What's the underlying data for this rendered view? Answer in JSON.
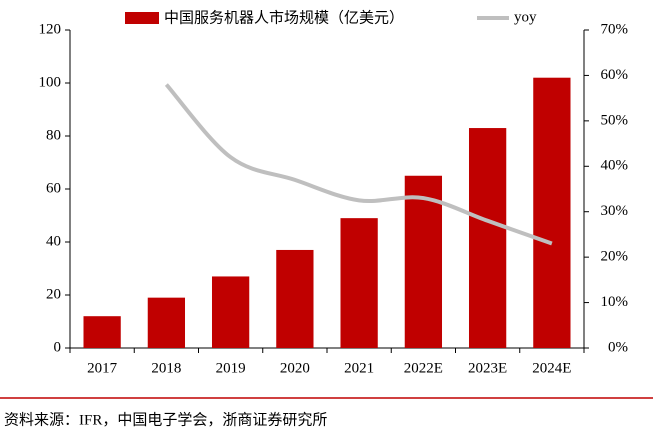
{
  "chart_data": {
    "type": "bar_line",
    "categories": [
      "2017",
      "2018",
      "2019",
      "2020",
      "2021",
      "2022E",
      "2023E",
      "2024E"
    ],
    "series": [
      {
        "name": "中国服务机器人市场规模（亿美元）",
        "type": "bar",
        "color": "#c00000",
        "values": [
          12,
          19,
          27,
          37,
          49,
          65,
          83,
          102
        ]
      },
      {
        "name": "yoy",
        "type": "line",
        "axis": "y2",
        "color": "#bfbfbf",
        "values": [
          null,
          58,
          42,
          37,
          32.5,
          33,
          28,
          23
        ]
      }
    ],
    "ylim": [
      0,
      120
    ],
    "yticks": [
      0,
      20,
      40,
      60,
      80,
      100,
      120
    ],
    "y2lim": [
      0,
      70
    ],
    "y2ticks": [
      {
        "value": 0,
        "label": "0%"
      },
      {
        "value": 10,
        "label": "10%"
      },
      {
        "value": 20,
        "label": "20%"
      },
      {
        "value": 30,
        "label": "30%"
      },
      {
        "value": 40,
        "label": "40%"
      },
      {
        "value": 50,
        "label": "50%"
      },
      {
        "value": 60,
        "label": "60%"
      },
      {
        "value": 70,
        "label": "70%"
      }
    ],
    "source": "资料来源：IFR，中国电子学会，浙商证券研究所"
  }
}
